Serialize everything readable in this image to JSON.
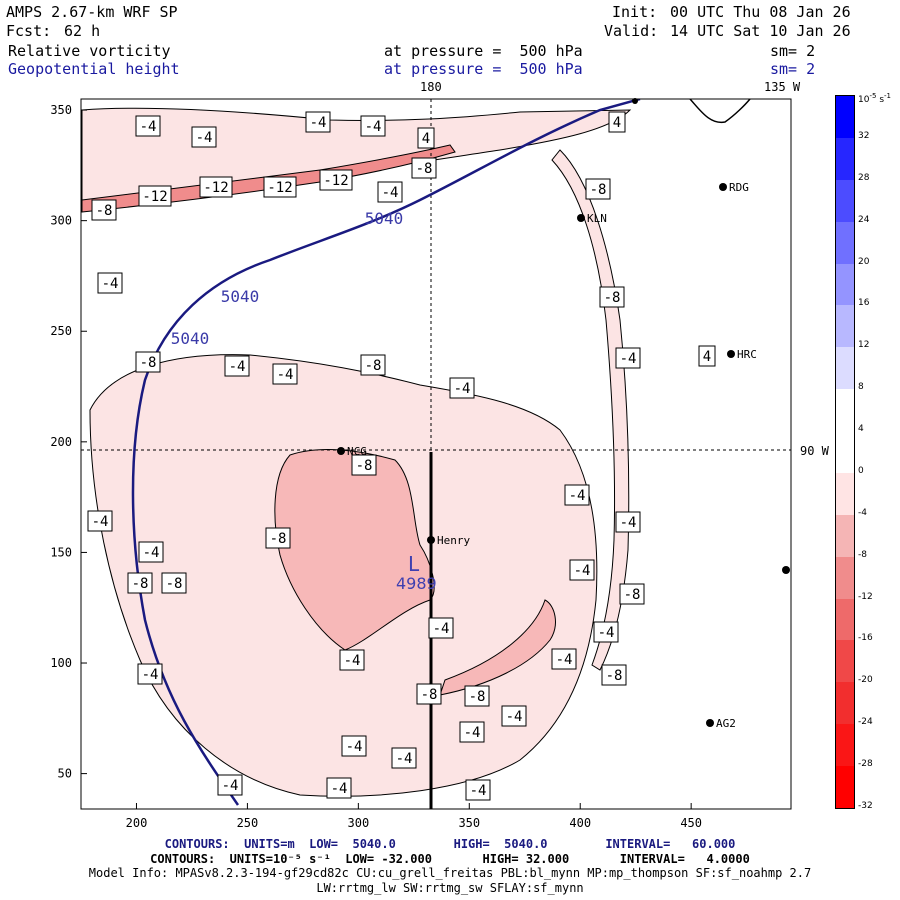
{
  "header": {
    "model": "AMPS 2.67-km WRF SP",
    "forecast_label": "Fcst:",
    "forecast_value": "62 h",
    "init_label": "Init:",
    "init_value": "00 UTC Thu 08 Jan 26",
    "valid_label": "Valid:",
    "valid_value": "14 UTC Sat 10 Jan 26",
    "field1_name": "Relative vorticity",
    "field1_level": "at pressure =  500 hPa",
    "field1_smooth": "sm= 2",
    "field2_name": "Geopotential height",
    "field2_level": "at pressure =  500 hPa",
    "field2_smooth": "sm= 2"
  },
  "map": {
    "meridian_label_180": "180",
    "meridian_label_135w": "135 W",
    "meridian_label_90w": "90 W",
    "x_ticks": [
      "200",
      "250",
      "300",
      "350",
      "400",
      "450"
    ],
    "y_ticks": [
      "50",
      "100",
      "150",
      "200",
      "250",
      "300",
      "350"
    ],
    "stations": [
      {
        "name": "RDG"
      },
      {
        "name": "KLN"
      },
      {
        "name": "HRC"
      },
      {
        "name": "NCG"
      },
      {
        "name": "Henry"
      },
      {
        "name": "AG2"
      }
    ],
    "low_center": {
      "symbol": "L",
      "value": "4989"
    },
    "height_contour_labels": [
      "5040",
      "5040",
      "5040"
    ],
    "vorticity_labels": [
      "-4",
      "-4",
      "-4",
      "-4",
      "4",
      "4",
      "-8",
      "-12",
      "-12",
      "-12",
      "-12",
      "-4",
      "-8",
      "-8",
      "-8",
      "-4",
      "-4",
      "-8",
      "-8",
      "-4",
      "-4",
      "-8",
      "-4",
      "-4",
      "-4",
      "-8",
      "-8",
      "-8",
      "-4",
      "-4",
      "-8",
      "-4",
      "-4",
      "-4",
      "-4",
      "-8",
      "-4",
      "-8",
      "-8",
      "-4",
      "-4",
      "-4",
      "-4",
      "-4",
      "-4",
      "-4",
      "-4",
      "4"
    ]
  },
  "colorbar": {
    "units": "10",
    "units_exp": "-5",
    "units_tail": "s",
    "units_tail_exp": "-1",
    "ticks": [
      "32",
      "28",
      "24",
      "20",
      "16",
      "12",
      "8",
      "4",
      "0",
      "-4",
      "-8",
      "-12",
      "-16",
      "-20",
      "-24",
      "-28",
      "-32"
    ],
    "colors": [
      "#0000ff",
      "#2626ff",
      "#4c4cff",
      "#7070ff",
      "#9494ff",
      "#b8b8ff",
      "#dcdcff",
      "#ffffff",
      "#ffffff",
      "#ffe4e4",
      "#f5b5b5",
      "#f08c8c",
      "#ee6a6a",
      "#f04848",
      "#f22e2e",
      "#fa1616",
      "#ff0000"
    ]
  },
  "footer": {
    "line1": "CONTOURS:  UNITS=m  LOW=  5040.0        HIGH=  5040.0        INTERVAL=   60.000",
    "line2": "CONTOURS:  UNITS=10⁻⁵ s⁻¹  LOW= -32.000       HIGH= 32.000       INTERVAL=   4.0000",
    "line3": "Model Info: MPASv8.2.3-194-gf29cd82c CU:cu_grell_freitas PBL:bl_mynn MP:mp_thompson SF:sf_noahmp 2.7",
    "line4": "LW:rrtmg_lw SW:rrtmg_sw SFLAY:sf_mynn"
  }
}
